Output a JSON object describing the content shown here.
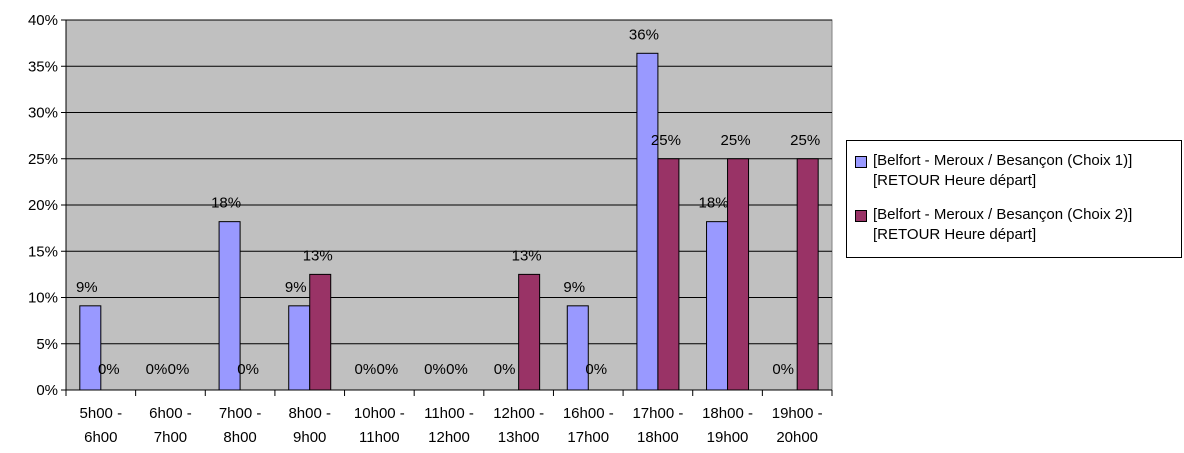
{
  "chart_data": {
    "type": "bar",
    "title": "",
    "xlabel": "",
    "ylabel": "",
    "ylim": [
      0,
      40
    ],
    "yticks": [
      "0%",
      "5%",
      "10%",
      "15%",
      "20%",
      "25%",
      "30%",
      "35%",
      "40%"
    ],
    "ytick_values": [
      0,
      5,
      10,
      15,
      20,
      25,
      30,
      35,
      40
    ],
    "grid": true,
    "legend": "right",
    "categories": [
      [
        "5h00 -",
        "6h00"
      ],
      [
        "6h00 -",
        "7h00"
      ],
      [
        "7h00 -",
        "8h00"
      ],
      [
        "8h00 -",
        "9h00"
      ],
      [
        "10h00 -",
        "11h00"
      ],
      [
        "11h00 -",
        "12h00"
      ],
      [
        "12h00 -",
        "13h00"
      ],
      [
        "16h00 -",
        "17h00"
      ],
      [
        "17h00 -",
        "18h00"
      ],
      [
        "18h00 -",
        "19h00"
      ],
      [
        "19h00 -",
        "20h00"
      ]
    ],
    "series": [
      {
        "name": "[Belfort - Meroux / Besançon (Choix 1)][RETOUR Heure départ]",
        "color": "#9999ff",
        "values": [
          9.1,
          0,
          18.2,
          9.1,
          0,
          0,
          0,
          9.1,
          36.4,
          18.2,
          0
        ],
        "labels": [
          "9%",
          "0%",
          "18%",
          "9%",
          "0%",
          "0%",
          "0%",
          "9%",
          "36%",
          "18%",
          "0%"
        ]
      },
      {
        "name": "[Belfort - Meroux / Besançon (Choix 2)][RETOUR Heure départ]",
        "color": "#993366",
        "values": [
          0,
          0,
          0,
          12.5,
          0,
          0,
          12.5,
          0,
          25,
          25,
          25
        ],
        "labels": [
          "0%",
          "0%",
          "0%",
          "13%",
          "0%",
          "0%",
          "13%",
          "0%",
          "25%",
          "25%",
          "25%"
        ]
      }
    ],
    "plot_background": "#c0c0c0"
  }
}
